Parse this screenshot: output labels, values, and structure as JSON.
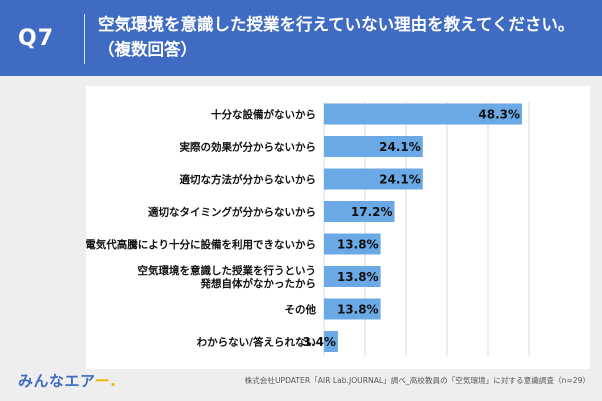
{
  "header": {
    "qnum": "Q7",
    "question": "空気環境を意識した授業を行えていない理由を教えてください。",
    "question_sub": "（複数回答）"
  },
  "chart_data": {
    "type": "bar",
    "orientation": "horizontal",
    "categories": [
      [
        "十分な設備がないから"
      ],
      [
        "実際の効果が分からないから"
      ],
      [
        "適切な方法が分からないから"
      ],
      [
        "適切なタイミングが分からないから"
      ],
      [
        "電気代高騰により十分に設備を利用できないから"
      ],
      [
        "空気環境を意識した授業を行うという",
        "発想自体がなかったから"
      ],
      [
        "その他"
      ],
      [
        "わからない/答えられない"
      ]
    ],
    "values": [
      48.3,
      24.1,
      24.1,
      17.2,
      13.8,
      13.8,
      13.8,
      3.4
    ],
    "value_labels": [
      "48.3%",
      "24.1%",
      "24.1%",
      "17.2%",
      "13.8%",
      "13.8%",
      "13.8%",
      "3.4%"
    ],
    "xlim": [
      0,
      50
    ],
    "bar_color": "#6aa9e6",
    "grid": true
  },
  "footer": {
    "logo_main": "みんなエア",
    "logo_tail": "ー.",
    "source": "株式会社UPDATER「AIR Lab.JOURNAL」調べ_高校教員の「空気環境」に対する意識調査（n=29）"
  },
  "colors": {
    "header_bg": "#3f6cc2",
    "bar": "#6aa9e6",
    "page_bg": "#eeeeee"
  }
}
